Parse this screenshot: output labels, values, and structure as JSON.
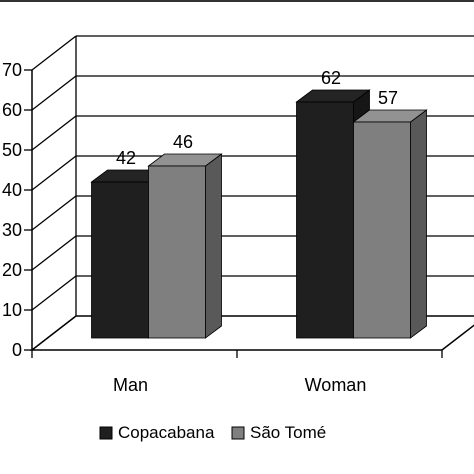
{
  "chart_data": {
    "type": "bar",
    "categories": [
      "Man",
      "Woman"
    ],
    "series": [
      {
        "name": "Copacabana",
        "values": [
          42,
          62
        ],
        "color": "#1f1f1f",
        "legend_marker": "dark-square-icon"
      },
      {
        "name": "São Tomé",
        "values": [
          46,
          57
        ],
        "color": "#7f7f7f",
        "legend_marker": "gray-square-icon"
      }
    ],
    "title": "",
    "xlabel": "",
    "ylabel": "",
    "ylim": [
      0,
      70
    ],
    "y_ticks": [
      0,
      10,
      20,
      30,
      40,
      50,
      60,
      70
    ],
    "grid": true,
    "three_d": true,
    "legend_position": "bottom"
  }
}
